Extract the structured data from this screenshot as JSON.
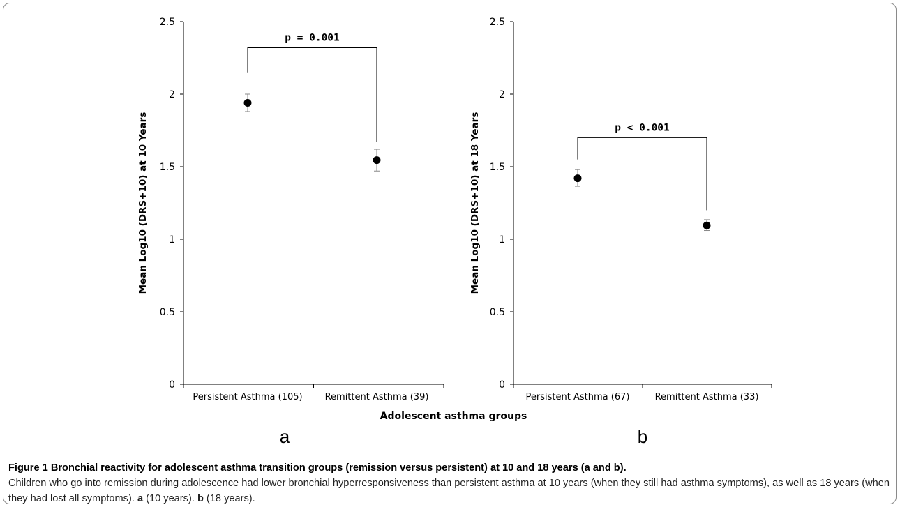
{
  "chart_data": [
    {
      "type": "scatter",
      "panel_label": "a",
      "ylabel": "Mean Log10 (DRS+10) at 10 Years",
      "ylim": [
        0,
        2.5
      ],
      "yticks": [
        "0",
        "0.5",
        "1",
        "1.5",
        "2",
        "2.5"
      ],
      "categories": [
        "Persistent Asthma (105)",
        "Remittent Asthma (39)"
      ],
      "values": [
        1.94,
        1.545
      ],
      "error_low": [
        1.88,
        1.47
      ],
      "error_high": [
        2.0,
        1.62
      ],
      "annotation": "p = 0.001",
      "bracket_y": 2.32,
      "bracket_left_bottom": 2.15,
      "bracket_right_bottom": 1.67
    },
    {
      "type": "scatter",
      "panel_label": "b",
      "ylabel": "Mean Log10 (DRS+10) at 18 Years",
      "ylim": [
        0,
        2.5
      ],
      "yticks": [
        "0",
        "0.5",
        "1",
        "1.5",
        "2",
        "2.5"
      ],
      "categories": [
        "Persistent Asthma (67)",
        "Remittent Asthma (33)"
      ],
      "values": [
        1.42,
        1.095
      ],
      "error_low": [
        1.365,
        1.06
      ],
      "error_high": [
        1.48,
        1.135
      ],
      "annotation": "p < 0.001",
      "bracket_y": 1.7,
      "bracket_left_bottom": 1.55,
      "bracket_right_bottom": 1.2
    }
  ],
  "shared_xlabel": "Adolescent asthma groups",
  "caption": {
    "title": "Figure 1 Bronchial reactivity for adolescent asthma transition groups (remission versus persistent) at 10 and 18 years (a and b).",
    "body_start": "Children who go into remission during adolescence had lower bronchial hyperresponsiveness than persistent asthma at 10 years (when they still had asthma symptoms), as well as 18 years (when they had lost all symptoms).",
    "ref_a": "a",
    "ref_a_text": "(10 years).",
    "ref_b": "b",
    "ref_b_text": "(18 years)."
  }
}
